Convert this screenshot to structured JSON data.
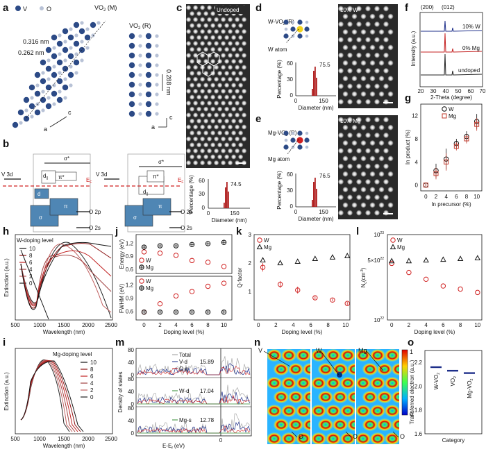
{
  "panel_letters": [
    "a",
    "b",
    "c",
    "d",
    "e",
    "f",
    "g",
    "h",
    "i",
    "j",
    "k",
    "l",
    "m",
    "n",
    "o"
  ],
  "colors": {
    "v_atom": "#2c4a86",
    "o_atom": "#b8c2d6",
    "w_red": "#d02020",
    "mg_red": "#c0392b",
    "pink": "#d9a3a8",
    "dark": "#111111"
  },
  "panel_a": {
    "legend_v": "V",
    "legend_o": "O",
    "title_m_main": "VO",
    "title_m_sub": "2",
    "title_m_suffix": " (M)",
    "title_r_main": "VO",
    "title_r_sub": "2",
    "title_r_suffix": " (R)",
    "dist1": "0.316 nm",
    "dist2": "0.262 nm",
    "dist3": "0.288 nm",
    "axis_a": "a",
    "axis_c": "c"
  },
  "panel_b": {
    "left_labels": {
      "sigma_star": "σ*",
      "d_par": "d",
      "d_par_sub": "||",
      "pi_star": "π*",
      "d_par2": "d",
      "sigma": "σ",
      "pi": "π",
      "v3d": "V 3d",
      "ef": "E",
      "ef_sub": "F",
      "o2p": "O 2p",
      "o2s": "O 2s"
    },
    "right_labels": {
      "sigma_star": "σ*",
      "pi_star": "π*",
      "d_par": "d",
      "d_par_sub": "||",
      "sigma": "σ",
      "pi": "π",
      "v3d": "V 3d",
      "ef": "E",
      "ef_sub": "F",
      "o2p": "O 2p",
      "o2s": "O 2s"
    }
  },
  "panel_c": {
    "label": "Undoped",
    "peak": "74.5",
    "ylabel": "Percentage (%)",
    "xlabel": "Diameter (nm)",
    "yticks": [
      "0",
      "30",
      "60"
    ],
    "xticks": [
      "0",
      "150"
    ]
  },
  "panel_d": {
    "title_main": "W-VO",
    "title_sub": "2",
    "title_suffix": " (R)",
    "atom_label": "W atom",
    "image_label": "10% W",
    "peak": "75.5",
    "ylabel": "Percentage (%)",
    "xlabel": "Diameter (nm)",
    "yticks": [
      "0",
      "30",
      "60"
    ],
    "xticks": [
      "0",
      "150"
    ]
  },
  "panel_e": {
    "title_main": "Mg-VO",
    "title_sub": "2",
    "title_suffix": " (R)",
    "atom_label": "Mg atom",
    "image_label": "10% Mg",
    "peak": "76.5",
    "ylabel": "Percentage (%)",
    "xlabel": "Diameter (nm)",
    "yticks": [
      "0",
      "30",
      "60"
    ],
    "xticks": [
      "0",
      "150"
    ]
  },
  "panel_f": {
    "peak1": "(200)",
    "peak2": "(012)",
    "series": [
      "10% W",
      "0% Mg",
      "undoped"
    ],
    "ylabel": "Intensity (a.u.)",
    "xlabel": "2-Theta (degree)",
    "xticks": [
      "20",
      "30",
      "40",
      "50",
      "60",
      "70"
    ]
  },
  "panel_h": {
    "legend_title": "W-doping level",
    "legend_items": [
      "10",
      "8",
      "6",
      "4",
      "2",
      "0"
    ],
    "ylabel": "Extinction (a.u.)",
    "xlabel": "Wavelength (nm)",
    "xticks": [
      "500",
      "1000",
      "1500",
      "2000",
      "2500"
    ]
  },
  "panel_i": {
    "legend_title": "Mg-doping level",
    "legend_items": [
      "10",
      "8",
      "6",
      "4",
      "2",
      "0"
    ],
    "ylabel": "Extinction (a.u.)",
    "xlabel": "Wavelength (nm)",
    "xticks": [
      "500",
      "1000",
      "1500",
      "2000",
      "2500"
    ]
  },
  "panel_m": {
    "legend": [
      "Total",
      "V-d",
      "O-p",
      "W-d",
      "Mg-s"
    ],
    "gap_values": [
      "15.89",
      "17.04",
      "12.78"
    ],
    "ylabel": "Density of states",
    "xlabel": "E-E",
    "xlabel_sub": "f",
    "xlabel_suffix": " (eV)",
    "yticks": [
      "0",
      "40",
      "80"
    ],
    "xzero": "0"
  },
  "panel_n": {
    "labels_top": [
      "V",
      "W",
      "Mg"
    ],
    "labels_bottom": [
      "O",
      "O",
      "O"
    ],
    "colorbar_ticks": [
      "1",
      "0"
    ]
  },
  "chart_data": [
    {
      "panel": "g",
      "type": "scatter",
      "xlabel": "In precursor (%)",
      "ylabel": "In product (%)",
      "xlim": [
        -1,
        11
      ],
      "ylim": [
        -1,
        14
      ],
      "xticks": [
        "0",
        "2",
        "4",
        "6",
        "8",
        "10"
      ],
      "yticks": [
        "0",
        "4",
        "8",
        "12"
      ],
      "series": [
        {
          "name": "W",
          "marker": "circle",
          "x": [
            0,
            2,
            4,
            6,
            8,
            10
          ],
          "y": [
            0,
            2.5,
            4.5,
            7.2,
            8.4,
            11.0
          ],
          "err": [
            0.3,
            1.2,
            1.8,
            0.8,
            0.9,
            1.3
          ]
        },
        {
          "name": "Mg",
          "marker": "square",
          "x": [
            0,
            2,
            4,
            6,
            8,
            10
          ],
          "y": [
            0,
            2.0,
            4.0,
            6.7,
            8.0,
            10.5
          ],
          "err": [
            0.3,
            1.0,
            1.5,
            0.7,
            0.8,
            1.1
          ]
        }
      ]
    },
    {
      "panel": "j_top",
      "type": "scatter",
      "ylabel": "Energy (eV)",
      "ylim": [
        0.5,
        1.4
      ],
      "yticks": [
        "0.6",
        "0.9",
        "1.2"
      ],
      "xlim": [
        -1,
        11
      ],
      "series": [
        {
          "name": "W",
          "marker": "circle",
          "x": [
            0,
            2,
            4,
            6,
            8,
            10
          ],
          "y": [
            1.0,
            0.97,
            0.92,
            0.8,
            0.76,
            0.66
          ]
        },
        {
          "name": "Mg",
          "marker": "circleplus",
          "x": [
            0,
            2,
            4,
            6,
            8,
            10
          ],
          "y": [
            1.11,
            1.14,
            1.14,
            1.17,
            1.19,
            1.22
          ]
        }
      ]
    },
    {
      "panel": "j_bottom",
      "type": "scatter",
      "xlabel": "Doping level (%)",
      "ylabel": "FWHM (eV)",
      "xlim": [
        -1,
        11
      ],
      "ylim": [
        0.4,
        1.4
      ],
      "yticks": [
        "0.6",
        "0.9",
        "1.2"
      ],
      "xticks": [
        "0",
        "2",
        "4",
        "6",
        "8",
        "10"
      ],
      "series": [
        {
          "name": "W",
          "marker": "circle",
          "x": [
            0,
            2,
            4,
            6,
            8,
            10
          ],
          "y": [
            0.58,
            0.77,
            0.95,
            1.05,
            1.17,
            1.24
          ]
        },
        {
          "name": "Mg",
          "marker": "circleplus",
          "x": [
            0,
            2,
            4,
            6,
            8,
            10
          ],
          "y": [
            0.58,
            0.58,
            0.58,
            0.58,
            0.58,
            0.58
          ]
        }
      ]
    },
    {
      "panel": "k",
      "type": "scatter",
      "xlabel": "Doping level (%)",
      "ylabel": "Q-factor",
      "xlim": [
        -0.5,
        10.5
      ],
      "ylim": [
        0,
        3
      ],
      "yticks": [
        "1",
        "2",
        "3"
      ],
      "xticks": [
        "0",
        "2",
        "4",
        "6",
        "8",
        "10"
      ],
      "series": [
        {
          "name": "W",
          "marker": "circle",
          "x": [
            0.5,
            2.5,
            4.5,
            6.5,
            8.5,
            10.2
          ],
          "y": [
            1.85,
            1.25,
            1.05,
            0.78,
            0.7,
            0.58
          ],
          "err": [
            0.15,
            0.12,
            0.12,
            0.05,
            0.05,
            0.05
          ]
        },
        {
          "name": "Mg",
          "marker": "triangle",
          "x": [
            0.5,
            2.5,
            4.5,
            6.5,
            8.5,
            10.2
          ],
          "y": [
            2.1,
            2.0,
            2.05,
            2.15,
            2.2,
            2.25
          ],
          "err": [
            0,
            0,
            0,
            0,
            0,
            0
          ]
        }
      ]
    },
    {
      "panel": "l",
      "type": "scatter",
      "xlabel": "Doping level (%)",
      "ylabel": "N",
      "ylabel_sub": "c",
      "ylabel_suffix": "(cm",
      "ylabel_sup": "-3",
      "ylabel_end": ")",
      "yscale": "log",
      "ylim": [
        1e+22,
        1e+23
      ],
      "ytick_mantissas": [
        "10",
        "5×10",
        "10"
      ],
      "ytick_exps": [
        "23",
        "22",
        "22"
      ],
      "xticks": [
        "0",
        "2",
        "4",
        "6",
        "8",
        "10"
      ],
      "xlim": [
        -0.5,
        10.5
      ],
      "series": [
        {
          "name": "W",
          "marker": "circle",
          "x": [
            0,
            2,
            4,
            6,
            8,
            10
          ],
          "y": [
            4.6e+22,
            3.6e+22,
            3e+22,
            2.5e+22,
            2.3e+22,
            2.1e+22
          ]
        },
        {
          "name": "Mg",
          "marker": "triangle",
          "x": [
            0,
            2,
            4,
            6,
            8,
            10
          ],
          "y": [
            4.9e+22,
            4.9e+22,
            5e+22,
            5.1e+22,
            5.2e+22,
            5.3e+22
          ]
        }
      ]
    },
    {
      "panel": "o",
      "type": "scatter",
      "xlabel": "Category",
      "ylabel": "Transferred electron (a.u.)",
      "ylim": [
        1.6,
        2.3
      ],
      "yticks": [
        "1.6",
        "1.8",
        "2.0",
        "2.2"
      ],
      "categories": [
        {
          "main": "W-VO",
          "sub": "2"
        },
        {
          "main": "VO",
          "sub": "2"
        },
        {
          "main": "Mg-VO",
          "sub": "2"
        }
      ],
      "values": [
        2.16,
        2.13,
        2.11
      ]
    }
  ]
}
